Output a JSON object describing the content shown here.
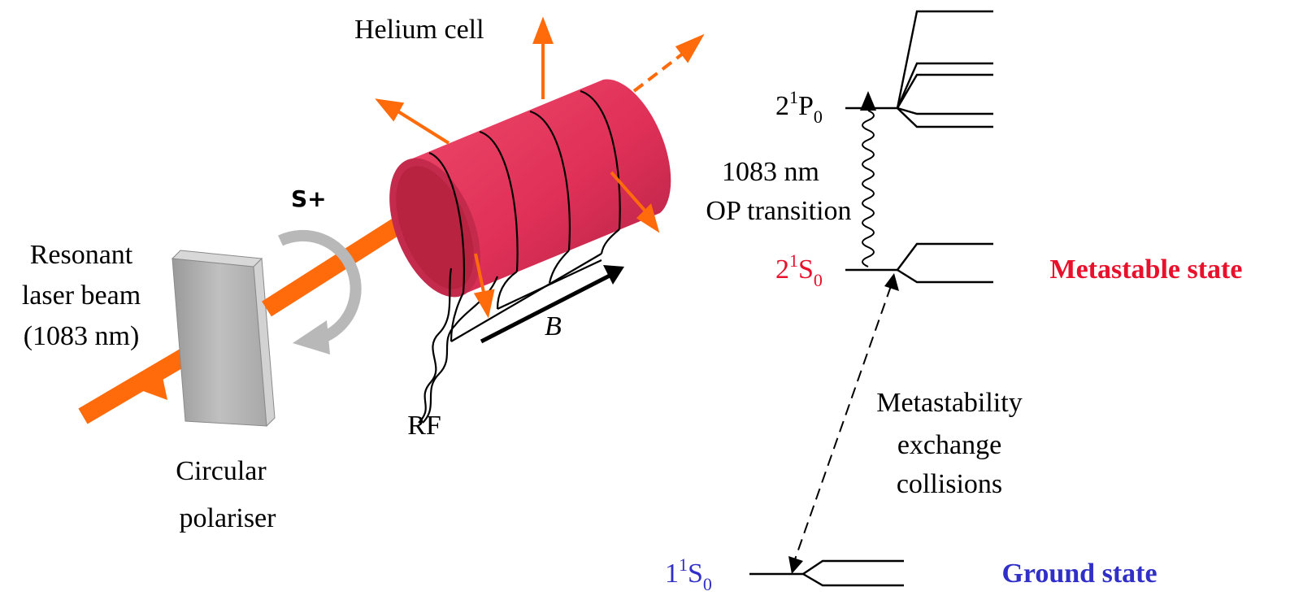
{
  "apparatus": {
    "helium_cell_label": "Helium cell",
    "polarisation_label": "S+",
    "laser_label_line1": "Resonant",
    "laser_label_line2": "laser beam",
    "laser_label_line3": "(1083 nm)",
    "polariser_label_line1": "Circular",
    "polariser_label_line2": "polariser",
    "rf_label": "RF",
    "field_label": "B"
  },
  "levels": {
    "p_level": {
      "base": "2",
      "sup": "1",
      "letter": "P",
      "sub": "0"
    },
    "metastable_level": {
      "base": "2",
      "sup": "1",
      "letter": "S",
      "sub": "0"
    },
    "ground_level": {
      "base": "1",
      "sup": "1",
      "letter": "S",
      "sub": "0"
    },
    "metastable_state_label": "Metastable state",
    "ground_state_label": "Ground state",
    "transition_label_line1": "1083 nm",
    "transition_label_line2": "OP transition",
    "exchange_label_line1": "Metastability",
    "exchange_label_line2": "exchange",
    "exchange_label_line3": "collisions"
  },
  "colors": {
    "laser": "#ff6a0a",
    "cell": "#e8365a",
    "cell_dark": "#b82848",
    "polariser": "#b0b0b0",
    "metastable": "#e8102a",
    "ground": "#3030c8"
  }
}
